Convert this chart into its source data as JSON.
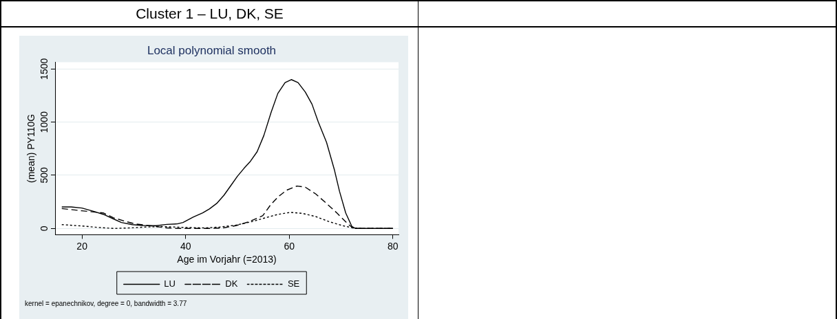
{
  "chart_data": {
    "type": "line",
    "title": "Cluster 1 – LU, DK, SE",
    "subtitle": "Local polynomial smooth",
    "xlabel": "Age im Vorjahr (=2013)",
    "ylabel": "(mean) PY110G",
    "annotations": [
      "kernel = epanechnikov, degree = 0, bandwidth = 3.77"
    ],
    "xlim": [
      14.8,
      81.1
    ],
    "xticks": [
      20,
      40,
      60,
      80
    ],
    "ylim": [
      -59,
      1564
    ],
    "yticks": [
      0,
      500,
      1000,
      1500
    ],
    "grid": "y",
    "legend": "bottom",
    "marker": "none",
    "series": [
      {
        "name": "LU",
        "color": "#000000",
        "line_style": "solid",
        "x": [
          16.1,
          17.9,
          20,
          22,
          24.1,
          26.1,
          27.6,
          29.7,
          31.8,
          34.3,
          36.4,
          38.4,
          39.5,
          41.5,
          43.3,
          44.6,
          46,
          47.4,
          48.7,
          50,
          51.3,
          52.5,
          53.8,
          55.1,
          56.5,
          57.8,
          59.2,
          60.4,
          61.7,
          63.1,
          64.4,
          65.6,
          67.2,
          68.7,
          69.7,
          70.9,
          72.1,
          72.8,
          80
        ],
        "values": [
          202,
          202,
          192,
          164,
          133,
          89,
          56,
          36,
          28,
          26,
          38,
          43,
          56,
          107,
          146,
          184,
          235,
          312,
          401,
          491,
          567,
          631,
          721,
          874,
          1091,
          1270,
          1372,
          1400,
          1372,
          1283,
          1168,
          1002,
          810,
          555,
          350,
          146,
          18,
          0,
          0
        ]
      },
      {
        "name": "DK",
        "color": "#000000",
        "line_style": "dashed",
        "x": [
          16.1,
          20,
          22,
          24.1,
          26.1,
          28.2,
          30.2,
          32.3,
          34.3,
          36.4,
          38.4,
          40.5,
          44.6,
          47.2,
          49.7,
          52.3,
          54.9,
          56.4,
          57.9,
          59.5,
          61.5,
          63.1,
          65.1,
          67.2,
          69.2,
          71.3,
          72.3,
          73.3,
          80
        ],
        "values": [
          187,
          166,
          156,
          146,
          100,
          69,
          43,
          31,
          18,
          5,
          0,
          0,
          0,
          5,
          26,
          64,
          120,
          222,
          299,
          360,
          399,
          388,
          325,
          235,
          146,
          43,
          5,
          0,
          0
        ]
      },
      {
        "name": "SE",
        "color": "#000000",
        "line_style": "dotted",
        "x": [
          16.1,
          20,
          23,
          26.1,
          29.2,
          32.3,
          35.3,
          39.5,
          43.6,
          46.6,
          49.7,
          52.8,
          55.9,
          57.9,
          60.2,
          62.6,
          65.1,
          67.7,
          70.3,
          72.3,
          74.4,
          80
        ],
        "values": [
          36,
          23,
          10,
          0,
          5,
          13,
          18,
          10,
          5,
          13,
          31,
          64,
          107,
          133,
          151,
          141,
          112,
          64,
          26,
          5,
          0,
          0
        ]
      }
    ]
  }
}
